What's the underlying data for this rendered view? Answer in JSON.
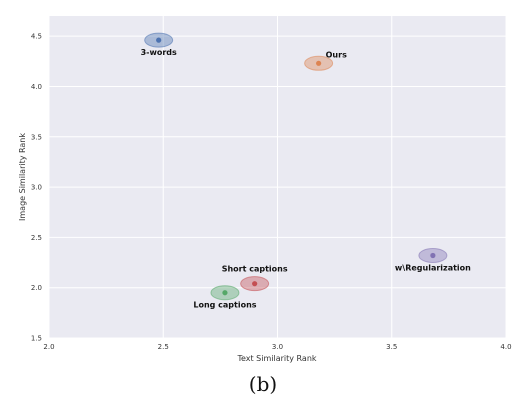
{
  "caption": "(b)",
  "chart_data": {
    "type": "scatter",
    "xlabel": "Text Similarity Rank",
    "ylabel": "Image Similarity Rank",
    "xlim": [
      2.0,
      4.0
    ],
    "ylim": [
      1.5,
      4.7
    ],
    "xticks": [
      "2.0",
      "2.5",
      "3.0",
      "3.5",
      "4.0"
    ],
    "yticks": [
      "1.5",
      "2.0",
      "2.5",
      "3.0",
      "3.5",
      "4.0",
      "4.5"
    ],
    "grid": true,
    "points": [
      {
        "label": "3-words",
        "x": 2.48,
        "y": 4.46,
        "color": "#4c72b0",
        "label_pos": "below"
      },
      {
        "label": "Ours",
        "x": 3.18,
        "y": 4.23,
        "color": "#dd8452",
        "label_pos": "above-right"
      },
      {
        "label": "Short captions",
        "x": 2.9,
        "y": 2.04,
        "color": "#c44e52",
        "label_pos": "above"
      },
      {
        "label": "Long captions",
        "x": 2.77,
        "y": 1.95,
        "color": "#55a868",
        "label_pos": "below"
      },
      {
        "label": "w\\Regularization",
        "x": 3.68,
        "y": 2.32,
        "color": "#8172b3",
        "label_pos": "below"
      }
    ]
  }
}
